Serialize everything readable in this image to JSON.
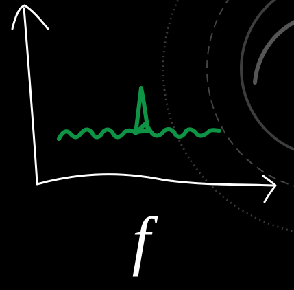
{
  "axis_label": "f"
}
